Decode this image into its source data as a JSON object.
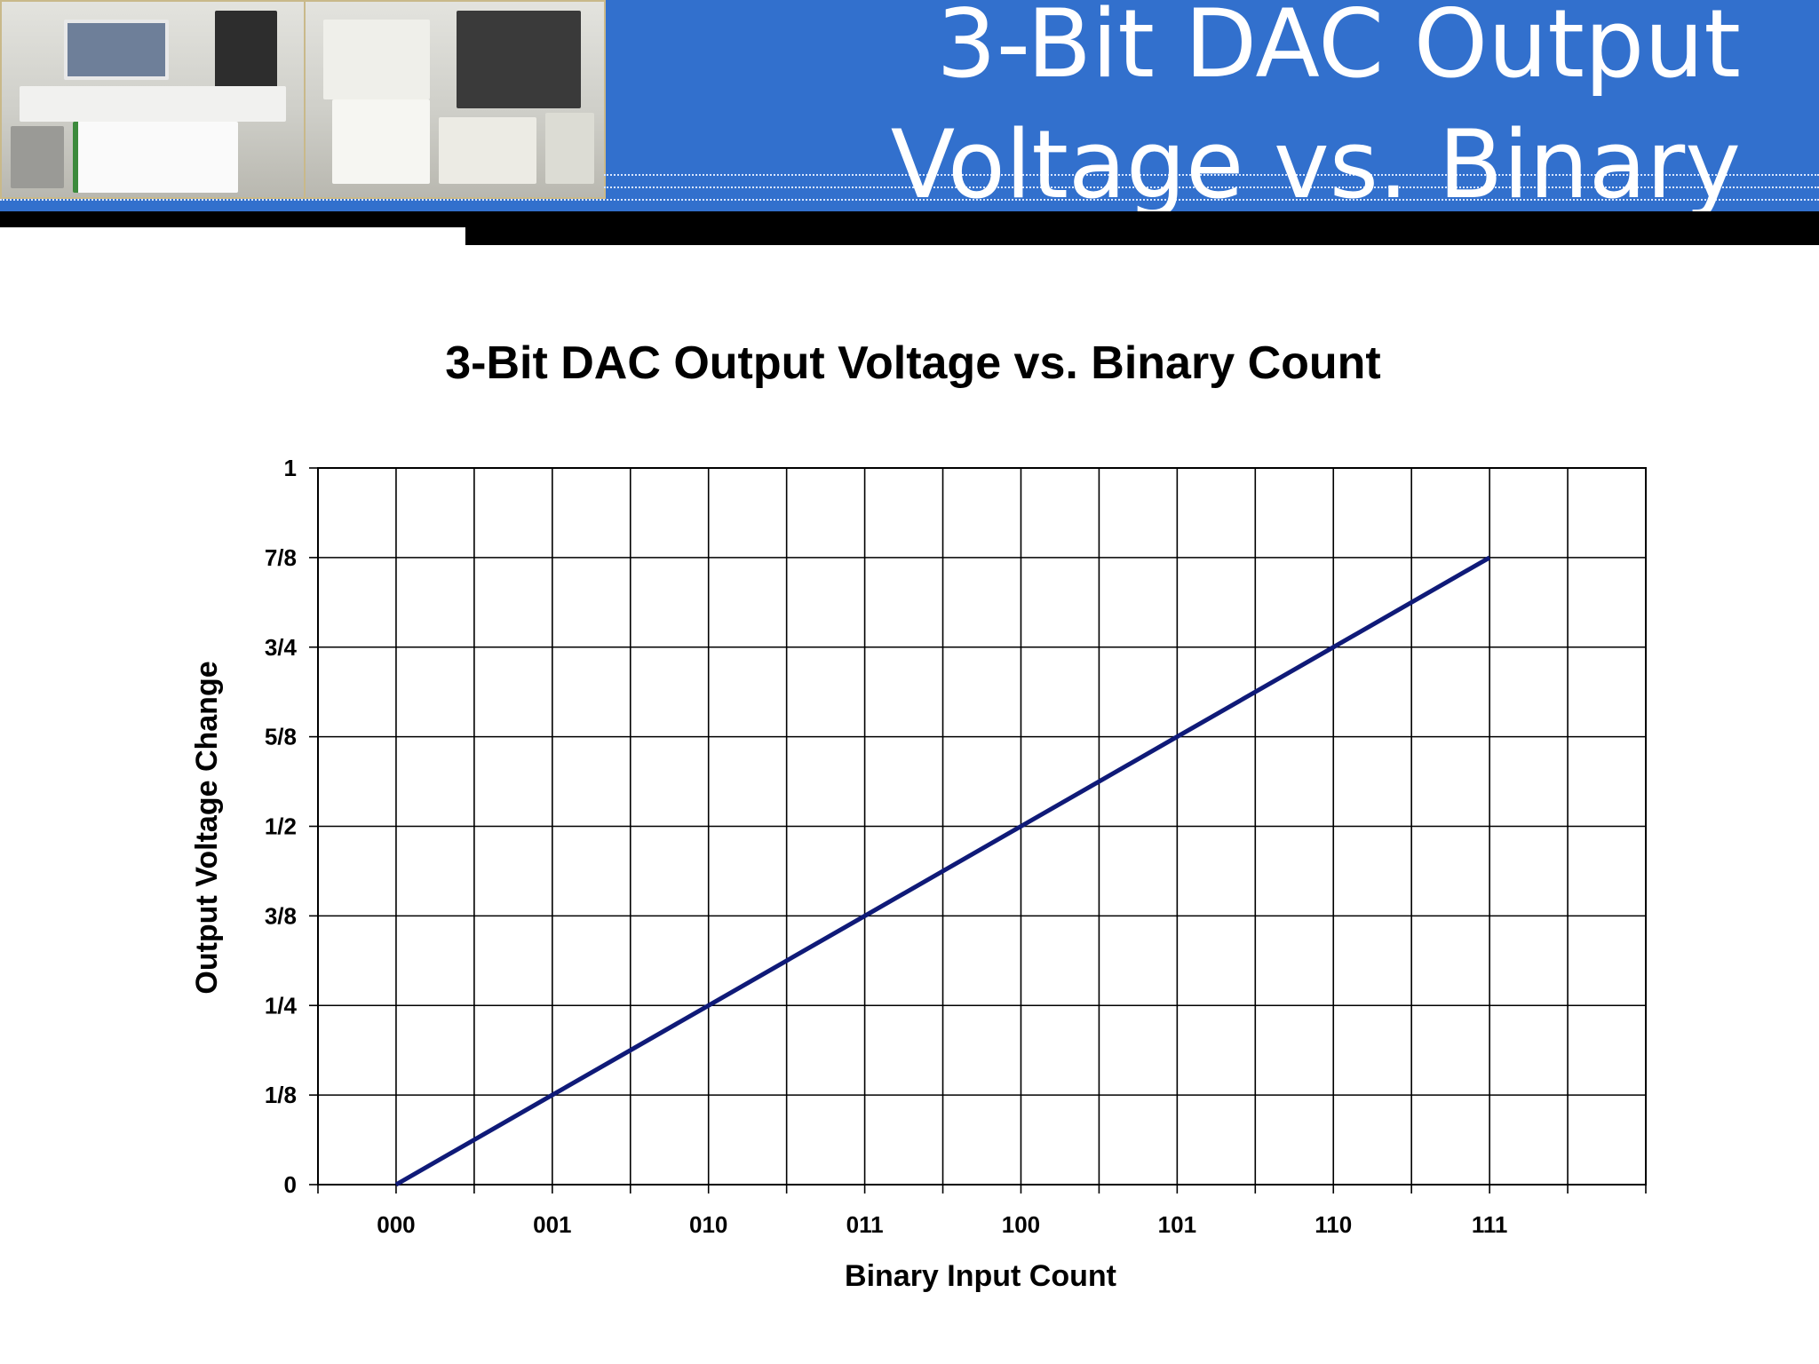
{
  "slide": {
    "title_line1": "3-Bit DAC Output",
    "title_line2": "Voltage vs. Binary"
  },
  "colors": {
    "banner": "#3270cd",
    "series_line": "#0f1a78",
    "grid": "#000000"
  },
  "chart_data": {
    "type": "line",
    "title": "3-Bit DAC Output Voltage vs. Binary Count",
    "xlabel": "Binary Input Count",
    "ylabel": "Output Voltage Change",
    "categories": [
      "000",
      "001",
      "010",
      "011",
      "100",
      "101",
      "110",
      "111"
    ],
    "y_ticks": [
      {
        "value": 0,
        "label": "0"
      },
      {
        "value": 0.125,
        "label": "1/8"
      },
      {
        "value": 0.25,
        "label": "1/4"
      },
      {
        "value": 0.375,
        "label": "3/8"
      },
      {
        "value": 0.5,
        "label": "1/2"
      },
      {
        "value": 0.625,
        "label": "5/8"
      },
      {
        "value": 0.75,
        "label": "3/4"
      },
      {
        "value": 0.875,
        "label": "7/8"
      },
      {
        "value": 1,
        "label": "1"
      }
    ],
    "ylim": [
      0,
      1
    ],
    "series": [
      {
        "values": [
          0,
          0.125,
          0.25,
          0.375,
          0.5,
          0.625,
          0.75,
          0.875
        ]
      }
    ],
    "grid": true,
    "legend": "none"
  }
}
